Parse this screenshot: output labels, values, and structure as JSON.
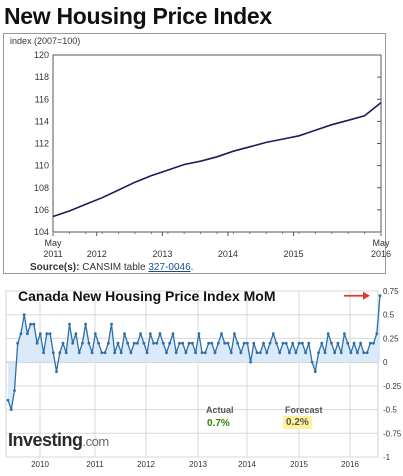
{
  "top_title": "New Housing Price Index",
  "source": {
    "label": "Source(s):",
    "text": "CANSIM table",
    "link": "327-0046",
    "suffix": "."
  },
  "bottom_title": "Canada New Housing Price Index MoM",
  "logo": {
    "main": "Investing",
    "suffix": ".com"
  },
  "stats": {
    "actual_label": "Actual",
    "actual_value": "0.7%",
    "forecast_label": "Forecast",
    "forecast_value": "0.2%"
  },
  "colors": {
    "top_line": "#1c1c5a",
    "mom_line": "#2f6fa6",
    "mom_fill": "#d6e8f8",
    "actual": "#2a8a00",
    "forecast_bg": "#fff29a",
    "arrow": "#e03c2a",
    "grid": "#d8d8d8"
  },
  "chart_data": [
    {
      "type": "line",
      "title": "New Housing Price Index",
      "ylabel": "index (2007=100)",
      "ylim": [
        104,
        120
      ],
      "yticks": [
        104,
        106,
        108,
        110,
        112,
        114,
        116,
        118,
        120
      ],
      "xlim": [
        "2011-05",
        "2016-05"
      ],
      "xticks": [
        "May 2011",
        "2012",
        "2013",
        "2014",
        "2015",
        "May 2016"
      ],
      "grid": "none",
      "series": [
        {
          "x": [
            "2011-05",
            "2011-08",
            "2011-11",
            "2012-02",
            "2012-05",
            "2012-08",
            "2012-11",
            "2013-02",
            "2013-05",
            "2013-08",
            "2013-11",
            "2014-02",
            "2014-05",
            "2014-08",
            "2014-11",
            "2015-02",
            "2015-05",
            "2015-08",
            "2015-11",
            "2016-02",
            "2016-05"
          ],
          "values": [
            105.4,
            105.9,
            106.5,
            107.1,
            107.8,
            108.5,
            109.1,
            109.6,
            110.1,
            110.4,
            110.8,
            111.3,
            111.7,
            112.1,
            112.4,
            112.7,
            113.2,
            113.7,
            114.1,
            114.5,
            115.7
          ]
        }
      ]
    },
    {
      "type": "area",
      "title": "Canada New Housing Price Index MoM",
      "ylim": [
        -1,
        0.75
      ],
      "yticks": [
        0.75,
        0.5,
        0.25,
        0,
        -0.25,
        -0.5,
        -0.75,
        -1
      ],
      "ytick_labels": [
        "0.75",
        "0.5",
        "0.25",
        "0",
        "-0.25",
        "-0.5",
        "-0.75",
        "-1"
      ],
      "xticks": [
        "2010",
        "2011",
        "2012",
        "2013",
        "2014",
        "2015",
        "2016"
      ],
      "grid": "vertical-and-horizontal",
      "series": [
        {
          "values": [
            -0.4,
            -0.5,
            -0.3,
            0.2,
            0.3,
            0.5,
            0.3,
            0.4,
            0.4,
            0.2,
            0.3,
            0.1,
            0.3,
            0.3,
            0.1,
            -0.1,
            0.1,
            0.2,
            0.1,
            0.4,
            0.2,
            0.3,
            0.1,
            0.2,
            0.4,
            0.2,
            0.1,
            0.3,
            0.2,
            0.1,
            0.1,
            0.2,
            0.4,
            0.1,
            0.2,
            0.1,
            0.3,
            0.2,
            0.1,
            0.2,
            0.2,
            0.3,
            0.2,
            0.1,
            0.3,
            0.2,
            0.2,
            0.3,
            0.2,
            0.1,
            0.2,
            0.3,
            0.1,
            0.2,
            0.2,
            0.1,
            0.2,
            0.2,
            0.1,
            0.3,
            0.1,
            0.1,
            0.2,
            0.2,
            0.1,
            0.2,
            0.3,
            0.2,
            0.2,
            0.1,
            0.3,
            0.2,
            0.1,
            0.2,
            0.2,
            0.0,
            0.2,
            0.1,
            0.1,
            0.2,
            0.1,
            0.2,
            0.3,
            0.2,
            0.1,
            0.2,
            0.2,
            0.1,
            0.2,
            0.1,
            0.2,
            0.2,
            0.1,
            0.2,
            0.0,
            -0.1,
            0.1,
            0.2,
            0.1,
            0.3,
            0.2,
            0.1,
            0.2,
            0.1,
            0.3,
            0.2,
            0.1,
            0.2,
            0.1,
            0.2,
            0.1,
            0.1,
            0.2,
            0.2,
            0.3,
            0.7
          ]
        }
      ]
    }
  ]
}
